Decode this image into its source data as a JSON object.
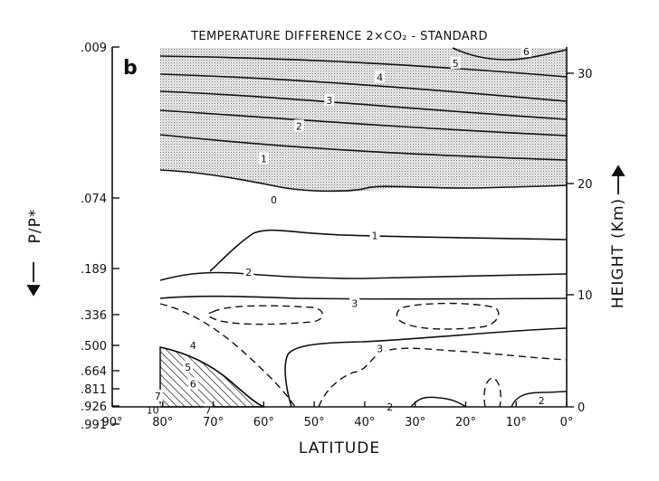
{
  "chart_data": {
    "type": "contour",
    "title": "TEMPERATURE DIFFERENCE  2×CO₂ - STANDARD",
    "panel_label": "b",
    "xlabel": "LATITUDE",
    "ylabel_left": "P/P*",
    "ylabel_right": "HEIGHT (Km)",
    "x_ticks": [
      "90°",
      "80°",
      "70°",
      "60°",
      "50°",
      "40°",
      "30°",
      "20°",
      "10°",
      "0°"
    ],
    "x_range": [
      90,
      0
    ],
    "left_ticks": [
      ".009",
      ".074",
      ".189",
      ".336",
      ".500",
      ".664",
      ".811",
      ".926",
      ".991"
    ],
    "right_ticks": [
      "30",
      "20",
      "10",
      "0"
    ],
    "contour_labels": [
      {
        "text": "6",
        "lat": 8,
        "sigma": 0.011
      },
      {
        "text": "5",
        "lat": 22,
        "sigma": 0.016
      },
      {
        "text": "4",
        "lat": 37,
        "sigma": 0.022
      },
      {
        "text": "3",
        "lat": 47,
        "sigma": 0.032
      },
      {
        "text": "2",
        "lat": 53,
        "sigma": 0.043
      },
      {
        "text": "1",
        "lat": 60,
        "sigma": 0.057
      },
      {
        "text": "0",
        "lat": 58,
        "sigma": 0.077
      },
      {
        "text": "1",
        "lat": 38,
        "sigma": 0.135
      },
      {
        "text": "2",
        "lat": 63,
        "sigma": 0.2
      },
      {
        "text": "3",
        "lat": 42,
        "sigma": 0.3
      },
      {
        "text": "3",
        "lat": 37,
        "sigma": 0.52
      },
      {
        "text": "4",
        "lat": 74,
        "sigma": 0.5
      },
      {
        "text": "5",
        "lat": 75,
        "sigma": 0.64
      },
      {
        "text": "6",
        "lat": 74,
        "sigma": 0.77
      },
      {
        "text": "7",
        "lat": 81,
        "sigma": 0.86
      },
      {
        "text": "10",
        "lat": 82,
        "sigma": 0.94
      },
      {
        "text": "7",
        "lat": 71,
        "sigma": 0.94
      },
      {
        "text": "2",
        "lat": 35,
        "sigma": 0.93
      },
      {
        "text": "2",
        "lat": 5,
        "sigma": 0.89
      }
    ],
    "shaded_region": "stratospheric cooling (negative difference)",
    "hatched_region": "warming greater than 4 K near 80°-60° latitude, lower troposphere"
  }
}
